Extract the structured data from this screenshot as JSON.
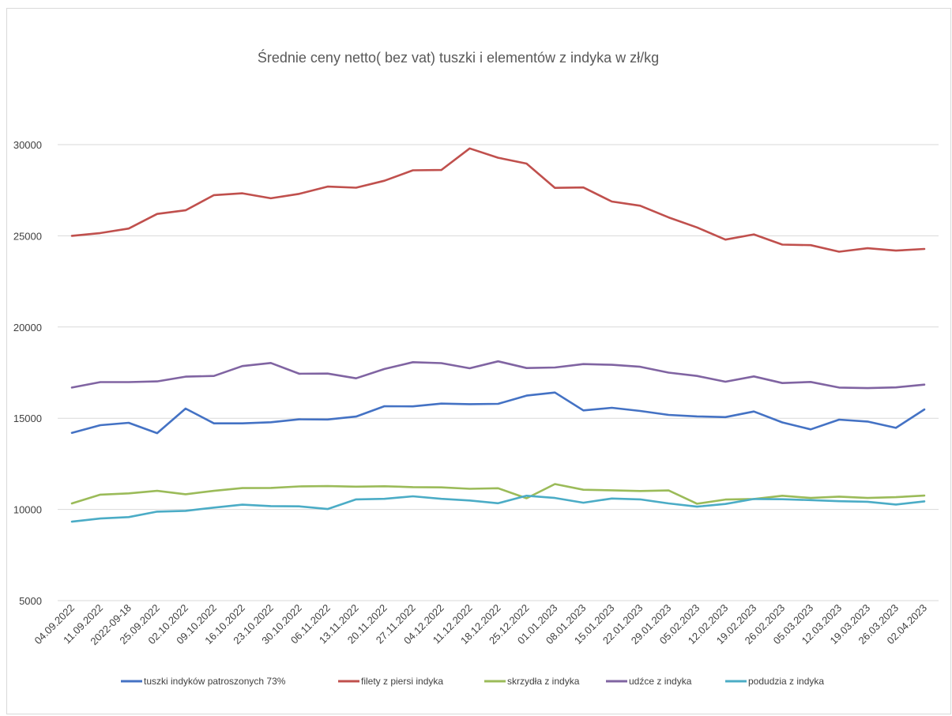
{
  "chart_data": {
    "type": "line",
    "title": "Średnie ceny netto( bez vat) tuszki i elementów z indyka w zł/kg",
    "xlabel": "",
    "ylabel": "",
    "ylim": [
      5000,
      30000
    ],
    "yticks": [
      "5000",
      "10000",
      "15000",
      "20000",
      "25000",
      "30000"
    ],
    "grid": true,
    "legend_position": "bottom",
    "categories": [
      "04.09.2022",
      "11.09.2022",
      "2022-09-18",
      "25.09.2022",
      "02.10.2022",
      "09.10.2022",
      "16.10.2022",
      "23.10.2022",
      "30.10.2022",
      "06.11.2022",
      "13.11.2022",
      "20.11.2022",
      "27.11.2022",
      "04.12.2022",
      "11.12.2022",
      "18.12.2022",
      "25.12.2022",
      "01.01.2023",
      "08.01.2023",
      "15.01.2023",
      "22.01.2023",
      "29.01.2023",
      "05.02.2023",
      "12.02.2023",
      "19.02.2023",
      "26.02.2023",
      "05.03.2023",
      "12.03.2023",
      "19.03.2023",
      "26.03.2023",
      "02.04.2023"
    ],
    "series": [
      {
        "name": "tuszki indyków patroszonych 73%",
        "color": "#4472c4",
        "values": [
          14200,
          14620,
          14750,
          14180,
          15530,
          14720,
          14720,
          14780,
          14940,
          14930,
          15090,
          15660,
          15650,
          15800,
          15770,
          15790,
          16240,
          16410,
          15430,
          15570,
          15400,
          15180,
          15100,
          15060,
          15370,
          14770,
          14390,
          14920,
          14820,
          14470,
          15480
        ]
      },
      {
        "name": "filety z piersi indyka",
        "color": "#c0504d",
        "values": [
          25000,
          25150,
          25400,
          26200,
          26400,
          27230,
          27330,
          27060,
          27300,
          27700,
          27640,
          28020,
          28590,
          28610,
          29790,
          29280,
          28960,
          27630,
          27650,
          26880,
          26650,
          26010,
          25460,
          24790,
          25080,
          24520,
          24490,
          24130,
          24320,
          24190,
          24280
        ]
      },
      {
        "name": "skrzydła z indyka",
        "color": "#9bbb59",
        "values": [
          10330,
          10810,
          10880,
          11020,
          10830,
          11020,
          11170,
          11180,
          11260,
          11280,
          11250,
          11270,
          11220,
          11210,
          11130,
          11160,
          10610,
          11390,
          11080,
          11050,
          11010,
          11040,
          10310,
          10540,
          10570,
          10750,
          10630,
          10700,
          10630,
          10670,
          10760
        ]
      },
      {
        "name": "udźce z indyka",
        "color": "#8064a2",
        "values": [
          16680,
          16980,
          16980,
          17020,
          17280,
          17320,
          17860,
          18030,
          17440,
          17450,
          17190,
          17700,
          18070,
          18020,
          17740,
          18120,
          17750,
          17780,
          17970,
          17930,
          17820,
          17500,
          17320,
          17000,
          17290,
          16930,
          16990,
          16680,
          16650,
          16690,
          16840
        ]
      },
      {
        "name": "podudzia z indyka",
        "color": "#4bacc6",
        "values": [
          9330,
          9500,
          9580,
          9880,
          9920,
          10100,
          10260,
          10180,
          10170,
          10020,
          10550,
          10580,
          10720,
          10580,
          10490,
          10340,
          10750,
          10630,
          10370,
          10600,
          10550,
          10330,
          10150,
          10300,
          10570,
          10560,
          10510,
          10450,
          10420,
          10270,
          10440
        ]
      }
    ]
  }
}
